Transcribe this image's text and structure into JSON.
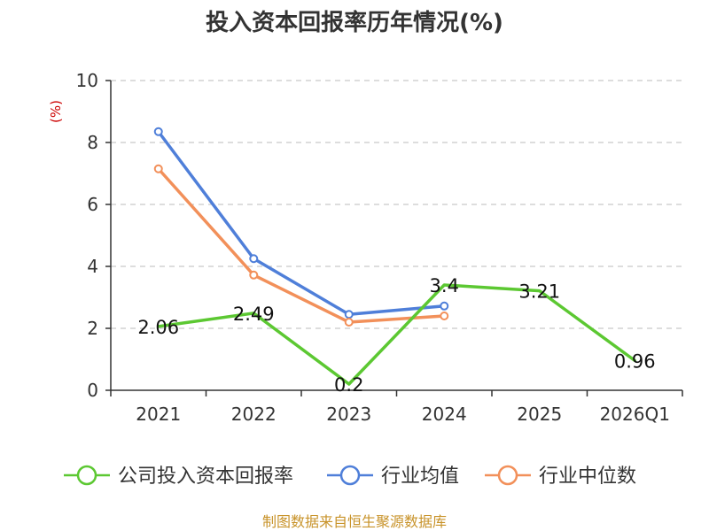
{
  "chart_data": {
    "type": "line",
    "title": "投入资本回报率历年情况(%)",
    "ylabel": "(%)",
    "xlabel": "",
    "categories": [
      "2021",
      "2022",
      "2023",
      "2024",
      "2025",
      "2026Q1"
    ],
    "ylim": [
      0,
      10
    ],
    "yticks": [
      0,
      2,
      4,
      6,
      8,
      10
    ],
    "grid": true,
    "legend_position": "bottom",
    "series": [
      {
        "name": "公司投入资本回报率",
        "color": "#5cc832",
        "values": [
          2.06,
          2.49,
          0.2,
          3.4,
          3.21,
          0.96
        ],
        "labels": [
          "2.06",
          "2.49",
          "0.2",
          "3.4",
          "3.21",
          "0.96"
        ],
        "show_markers": false
      },
      {
        "name": "行业均值",
        "color": "#4f7fd9",
        "values": [
          8.35,
          4.25,
          2.45,
          2.72,
          null,
          null
        ],
        "show_markers": true
      },
      {
        "name": "行业中位数",
        "color": "#f2905a",
        "values": [
          7.15,
          3.72,
          2.2,
          2.4,
          null,
          null
        ],
        "show_markers": true
      }
    ],
    "source": "制图数据来自恒生聚源数据库"
  }
}
